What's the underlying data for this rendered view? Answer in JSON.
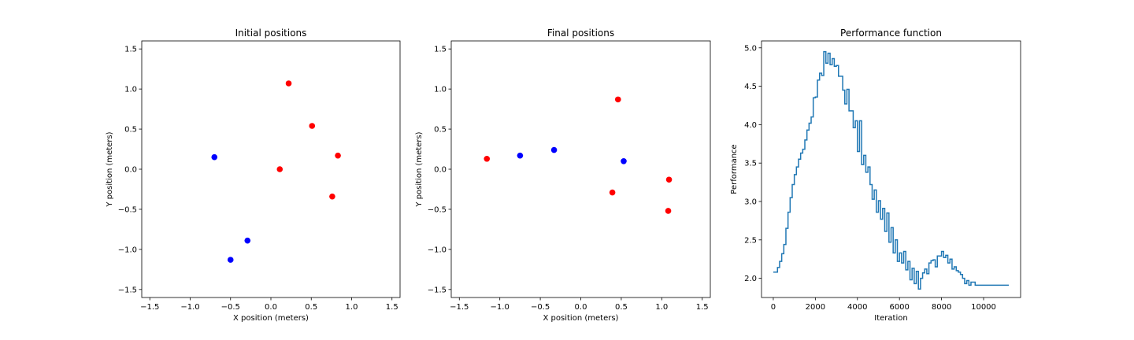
{
  "chart_data": [
    {
      "type": "scatter",
      "title": "Initial positions",
      "xlabel": "X position (meters)",
      "ylabel": "Y position (meters)",
      "xlim": [
        -1.6,
        1.6
      ],
      "ylim": [
        -1.6,
        1.6
      ],
      "xticks": [
        -1.5,
        -1.0,
        -0.5,
        0.0,
        0.5,
        1.0,
        1.5
      ],
      "yticks": [
        -1.5,
        -1.0,
        -0.5,
        0.0,
        0.5,
        1.0,
        1.5
      ],
      "xtick_labels": [
        "−1.5",
        "−1.0",
        "−0.5",
        "0.0",
        "0.5",
        "1.0",
        "1.5"
      ],
      "ytick_labels": [
        "−1.5",
        "−1.0",
        "−0.5",
        "0.0",
        "0.5",
        "1.0",
        "1.5"
      ],
      "grid": false,
      "series": [
        {
          "color": "#ff0000",
          "points": [
            [
              0.22,
              1.07
            ],
            [
              0.51,
              0.54
            ],
            [
              0.11,
              0.0
            ],
            [
              0.83,
              0.17
            ],
            [
              0.76,
              -0.34
            ]
          ]
        },
        {
          "color": "#0000ff",
          "points": [
            [
              -0.7,
              0.15
            ],
            [
              -0.29,
              -0.89
            ],
            [
              -0.5,
              -1.13
            ]
          ]
        }
      ]
    },
    {
      "type": "scatter",
      "title": "Final positions",
      "xlabel": "X position (meters)",
      "ylabel": "Y position (meters)",
      "xlim": [
        -1.6,
        1.6
      ],
      "ylim": [
        -1.6,
        1.6
      ],
      "xticks": [
        -1.5,
        -1.0,
        -0.5,
        0.0,
        0.5,
        1.0,
        1.5
      ],
      "yticks": [
        -1.5,
        -1.0,
        -0.5,
        0.0,
        0.5,
        1.0,
        1.5
      ],
      "xtick_labels": [
        "−1.5",
        "−1.0",
        "−0.5",
        "0.0",
        "0.5",
        "1.0",
        "1.5"
      ],
      "ytick_labels": [
        "−1.5",
        "−1.0",
        "−0.5",
        "0.0",
        "0.5",
        "1.0",
        "1.5"
      ],
      "grid": false,
      "series": [
        {
          "color": "#ff0000",
          "points": [
            [
              -1.16,
              0.13
            ],
            [
              0.46,
              0.87
            ],
            [
              0.39,
              -0.29
            ],
            [
              1.09,
              -0.13
            ],
            [
              1.08,
              -0.52
            ]
          ]
        },
        {
          "color": "#0000ff",
          "points": [
            [
              -0.75,
              0.17
            ],
            [
              -0.33,
              0.24
            ],
            [
              0.53,
              0.1
            ]
          ]
        }
      ]
    },
    {
      "type": "line",
      "step": true,
      "title": "Performance function",
      "xlabel": "Iteration",
      "ylabel": "Performance",
      "xlim": [
        -560,
        11760
      ],
      "ylim": [
        1.75,
        5.09
      ],
      "xticks": [
        0,
        2000,
        4000,
        6000,
        8000,
        10000
      ],
      "yticks": [
        2.0,
        2.5,
        3.0,
        3.5,
        4.0,
        4.5,
        5.0
      ],
      "xtick_labels": [
        "0",
        "2000",
        "4000",
        "6000",
        "8000",
        "10000"
      ],
      "ytick_labels": [
        "2.0",
        "2.5",
        "3.0",
        "3.5",
        "4.0",
        "4.5",
        "5.0"
      ],
      "grid": false,
      "series": [
        {
          "color": "#1f77b4",
          "x": [
            0,
            200,
            300,
            400,
            500,
            600,
            700,
            800,
            900,
            1000,
            1100,
            1200,
            1300,
            1400,
            1500,
            1600,
            1700,
            1800,
            1900,
            2000,
            2100,
            2200,
            2300,
            2400,
            2500,
            2600,
            2700,
            2800,
            2900,
            3000,
            3100,
            3200,
            3300,
            3400,
            3500,
            3600,
            3700,
            3800,
            3900,
            4000,
            4100,
            4200,
            4300,
            4400,
            4500,
            4600,
            4700,
            4800,
            4900,
            5000,
            5100,
            5200,
            5300,
            5400,
            5500,
            5600,
            5700,
            5800,
            5900,
            6000,
            6100,
            6200,
            6300,
            6400,
            6500,
            6600,
            6700,
            6800,
            6900,
            7000,
            7100,
            7200,
            7300,
            7400,
            7500,
            7600,
            7700,
            7800,
            7900,
            8000,
            8100,
            8200,
            8300,
            8400,
            8500,
            8600,
            8700,
            8800,
            8900,
            9000,
            9100,
            9200,
            9300,
            9400,
            9500,
            9600,
            9700,
            9800,
            9900,
            10000,
            10100,
            10200,
            10300,
            10400,
            10500,
            10600,
            10700,
            10800,
            10900,
            11000,
            11100,
            11200
          ],
          "y": [
            2.08,
            2.14,
            2.22,
            2.32,
            2.44,
            2.65,
            2.86,
            3.05,
            3.22,
            3.35,
            3.45,
            3.55,
            3.63,
            3.68,
            3.8,
            3.93,
            4.02,
            4.1,
            4.35,
            4.36,
            4.58,
            4.67,
            4.64,
            4.95,
            4.8,
            4.93,
            4.78,
            4.86,
            4.76,
            4.77,
            4.63,
            4.63,
            4.45,
            4.27,
            4.46,
            4.18,
            4.18,
            3.96,
            4.05,
            3.65,
            4.05,
            3.48,
            3.6,
            3.38,
            3.45,
            3.22,
            3.03,
            3.15,
            2.86,
            3.01,
            2.77,
            2.91,
            2.61,
            2.85,
            2.47,
            2.66,
            2.33,
            2.5,
            2.22,
            2.33,
            2.2,
            2.35,
            2.11,
            2.22,
            1.98,
            2.13,
            1.93,
            2.09,
            1.86,
            2.0,
            2.07,
            2.12,
            2.06,
            2.2,
            2.23,
            2.24,
            2.15,
            2.29,
            2.29,
            2.35,
            2.27,
            2.3,
            2.2,
            2.25,
            2.12,
            2.15,
            2.1,
            2.08,
            2.05,
            2.0,
            1.93,
            1.97,
            1.91,
            1.95,
            1.95,
            1.91,
            1.91,
            1.91,
            1.91,
            1.91,
            1.91,
            1.91,
            1.91,
            1.91,
            1.91,
            1.91,
            1.91,
            1.91,
            1.91,
            1.91,
            1.91,
            1.91
          ]
        }
      ]
    }
  ]
}
